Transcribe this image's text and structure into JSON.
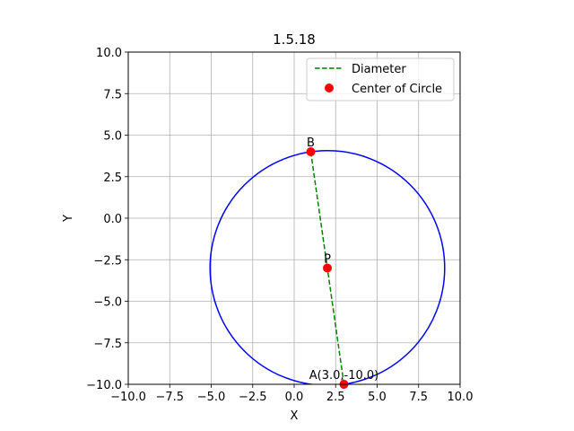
{
  "chart_data": {
    "type": "line",
    "title": "1.5.18",
    "xlabel": "X",
    "ylabel": "Y",
    "xlim": [
      -10,
      10
    ],
    "ylim": [
      -10,
      10
    ],
    "xticks": [
      -10.0,
      -7.5,
      -5.0,
      -2.5,
      0.0,
      2.5,
      5.0,
      7.5,
      10.0
    ],
    "yticks": [
      -10.0,
      -7.5,
      -5.0,
      -2.5,
      0.0,
      2.5,
      5.0,
      7.5,
      10.0
    ],
    "xtick_labels": [
      "−10.0",
      "−7.5",
      "−5.0",
      "−2.5",
      "0.0",
      "2.5",
      "5.0",
      "7.5",
      "10.0"
    ],
    "ytick_labels": [
      "−10.0",
      "−7.5",
      "−5.0",
      "−2.5",
      "0.0",
      "2.5",
      "5.0",
      "7.5",
      "10.0"
    ],
    "grid": true,
    "legend_position": "top-right",
    "circle": {
      "center": [
        2,
        -3
      ],
      "radius": 7.07,
      "color": "#0000ff"
    },
    "diameter": {
      "name": "Diameter",
      "points": [
        [
          1,
          4
        ],
        [
          3,
          -10
        ]
      ],
      "color": "#008000",
      "style": "dashed"
    },
    "center_marker": {
      "name": "Center of Circle",
      "color": "#ff0000"
    },
    "points": [
      {
        "label": "A(3.0,-10.0)",
        "x": 3,
        "y": -10
      },
      {
        "label": "B",
        "x": 1,
        "y": 4
      },
      {
        "label": "P",
        "x": 2,
        "y": -3
      }
    ]
  }
}
